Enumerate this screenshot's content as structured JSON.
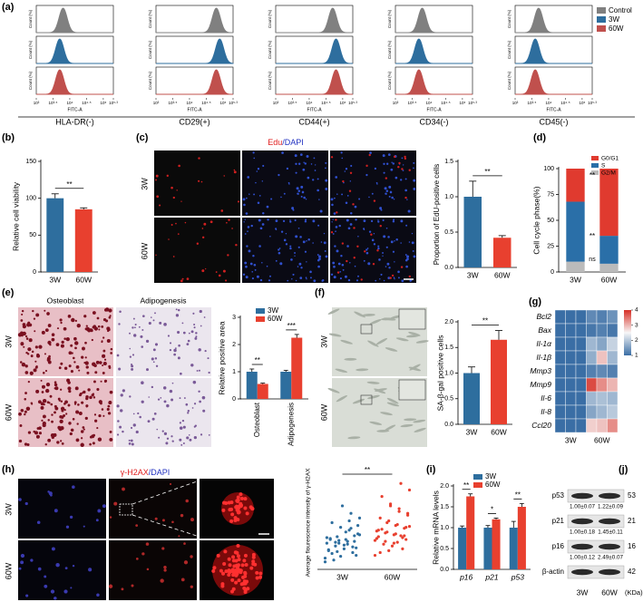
{
  "chart_data": [
    {
      "type": "flow-histogram",
      "label": "(a)",
      "ylabel": "Count (%)",
      "xlabel": "FITC-A",
      "categories": [
        "HLA-DR(-)",
        "CD29(+)",
        "CD44(+)",
        "CD34(-)",
        "CD45(-)"
      ],
      "series": [
        {
          "name": "Control",
          "color": "#808080",
          "values": [
            3.8,
            4.8,
            4.7,
            3.8,
            3.7
          ]
        },
        {
          "name": "3W",
          "color": "#2e6e9e",
          "values": [
            3.7,
            4.9,
            4.8,
            3.7,
            3.6
          ]
        },
        {
          "name": "60W",
          "color": "#c0504d",
          "values": [
            3.7,
            4.8,
            4.8,
            3.7,
            3.6
          ]
        }
      ],
      "xlim": [
        3,
        5.3
      ],
      "xticks": [
        {
          "value": 3,
          "label": "10³"
        },
        {
          "value": 3.5,
          "label": "10³·⁵"
        },
        {
          "value": 4,
          "label": "10⁴"
        },
        {
          "value": 4.5,
          "label": "10⁴·⁵"
        },
        {
          "value": 5,
          "label": "10⁵"
        },
        {
          "value": 5.3,
          "label": "10⁵·³"
        }
      ]
    },
    {
      "type": "bar",
      "label": "(b)",
      "ylabel": "Relative cell viability",
      "categories": [
        "3W",
        "60W"
      ],
      "values": [
        100,
        85
      ],
      "errors": [
        6,
        2
      ],
      "colors": [
        "#2e6e9e",
        "#e8402f"
      ],
      "ylim": [
        0,
        150
      ],
      "yticks": [
        0,
        50,
        100,
        150
      ],
      "annotations": [
        "**"
      ]
    },
    {
      "type": "bar",
      "label": "(c)",
      "ylabel": "Proportion of EdU-positive cells",
      "categories": [
        "3W",
        "60W"
      ],
      "values": [
        1.0,
        0.42
      ],
      "errors": [
        0.22,
        0.03
      ],
      "colors": [
        "#2e6e9e",
        "#e8402f"
      ],
      "ylim": [
        0,
        1.5
      ],
      "yticks": [
        {
          "value": 0,
          "label": "0.0"
        },
        {
          "value": 0.5,
          "label": "0.5"
        },
        {
          "value": 1,
          "label": "1.0"
        },
        {
          "value": 1.5,
          "label": "1.5"
        }
      ],
      "annotations": [
        "**"
      ],
      "image_title": [
        "Edu",
        "/DAPI"
      ],
      "image_rows": [
        "3W",
        "60W"
      ]
    },
    {
      "type": "stacked-bar",
      "label": "(d)",
      "ylabel": "Cell cycle phase(%)",
      "categories": [
        "3W",
        "60W"
      ],
      "series": [
        {
          "name": "G0/G1",
          "color": "#e03a2f",
          "values": [
            32,
            65
          ]
        },
        {
          "name": "S",
          "color": "#2a6fa8",
          "values": [
            58,
            27
          ]
        },
        {
          "name": "G2/M",
          "color": "#bbbbbb",
          "values": [
            10,
            8
          ]
        }
      ],
      "ylim": [
        0,
        100
      ],
      "yticks": [
        0,
        25,
        50,
        75,
        100
      ],
      "annotations": [
        "**",
        "**",
        "ns"
      ]
    },
    {
      "type": "grouped-bar",
      "label": "(e)",
      "ylabel": "Relative positive area",
      "categories": [
        "Osteoblast",
        "Adipogenesis"
      ],
      "series": [
        {
          "name": "3W",
          "color": "#2e6e9e",
          "values": [
            1.0,
            1.0
          ],
          "errors": [
            0.1,
            0.05
          ]
        },
        {
          "name": "60W",
          "color": "#e8402f",
          "values": [
            0.55,
            2.25
          ],
          "errors": [
            0.03,
            0.12
          ]
        }
      ],
      "ylim": [
        0,
        3
      ],
      "yticks": [
        0,
        1,
        2,
        3
      ],
      "annotations": [
        "**",
        "***"
      ],
      "image_columns": [
        "Osteoblast",
        "Adipogenesis"
      ],
      "image_rows": [
        "3W",
        "60W"
      ]
    },
    {
      "type": "bar",
      "label": "(f)",
      "ylabel": "SA-β-gal positive cells",
      "categories": [
        "3W",
        "60W"
      ],
      "values": [
        1.0,
        1.65
      ],
      "errors": [
        0.12,
        0.18
      ],
      "colors": [
        "#2e6e9e",
        "#e8402f"
      ],
      "ylim": [
        0,
        2
      ],
      "yticks": [
        {
          "value": 0,
          "label": "0.0"
        },
        {
          "value": 0.5,
          "label": "0.5"
        },
        {
          "value": 1,
          "label": "1.0"
        },
        {
          "value": 1.5,
          "label": "1.5"
        },
        {
          "value": 2,
          "label": "2.0"
        }
      ],
      "annotations": [
        "**"
      ],
      "image_rows": [
        "3W",
        "60W"
      ]
    },
    {
      "type": "heatmap",
      "label": "(g)",
      "rows": [
        "Bcl2",
        "Bax",
        "Il-1α",
        "Il-1β",
        "Mmp3",
        "Mmp9",
        "Il-6",
        "Il-8",
        "Ccl20"
      ],
      "categories": [
        "3W",
        "60W"
      ],
      "values": [
        [
          1,
          1,
          1,
          1.3,
          1.2,
          1.4
        ],
        [
          1,
          1,
          1,
          1.1,
          1.2,
          1.1
        ],
        [
          1,
          1,
          1,
          1.8,
          1.6,
          2.1
        ],
        [
          1,
          1,
          1,
          1.7,
          2.9,
          1.8
        ],
        [
          1,
          1,
          1,
          1.2,
          1.3,
          1.2
        ],
        [
          1,
          1,
          1,
          3.8,
          3.3,
          3.0
        ],
        [
          1,
          1,
          1,
          1.8,
          1.9,
          1.8
        ],
        [
          1,
          1,
          1,
          1.6,
          1.8,
          2.0
        ],
        [
          1,
          1,
          1,
          2.8,
          2.9,
          3.3
        ]
      ],
      "zlim": [
        1,
        4
      ],
      "zticks": [
        1,
        2,
        3,
        4
      ],
      "colors": [
        "#3a6ea5",
        "#f7f7f7",
        "#d73027"
      ]
    },
    {
      "type": "dot-plot",
      "label": "(h)",
      "ylabel": "Average flourescence intensity of γ-H2AX",
      "categories": [
        "3W",
        "60W"
      ],
      "colors": [
        "#2e6e9e",
        "#e8402f"
      ],
      "ylim": [
        0,
        1
      ],
      "annotations": [
        "**"
      ],
      "values": [
        [
          0.12,
          0.18,
          0.22,
          0.25,
          0.28,
          0.3,
          0.32,
          0.35,
          0.2,
          0.15,
          0.27,
          0.31,
          0.33,
          0.38,
          0.42,
          0.45,
          0.5,
          0.55,
          0.6,
          0.68,
          0.1,
          0.08,
          0.24,
          0.26,
          0.29,
          0.34,
          0.36,
          0.4,
          0.19,
          0.21,
          0.23,
          0.3,
          0.28,
          0.32,
          0.47,
          0.52,
          0.14,
          0.17,
          0.37,
          0.44
        ],
        [
          0.15,
          0.22,
          0.28,
          0.3,
          0.33,
          0.36,
          0.38,
          0.4,
          0.42,
          0.45,
          0.48,
          0.52,
          0.55,
          0.6,
          0.65,
          0.7,
          0.78,
          0.85,
          0.92,
          0.25,
          0.27,
          0.31,
          0.34,
          0.37,
          0.39,
          0.41,
          0.44,
          0.47,
          0.5,
          0.35,
          0.32,
          0.29,
          0.2,
          0.18,
          0.58,
          0.62,
          0.68,
          0.43,
          0.46,
          0.36
        ]
      ],
      "image_title": [
        "γ-H2AX",
        "/DAPI"
      ],
      "image_rows": [
        "3W",
        "60W"
      ]
    },
    {
      "type": "grouped-bar",
      "label": "(i)",
      "ylabel": "Relative mRNA levels",
      "categories": [
        "p16",
        "p21",
        "p53"
      ],
      "series": [
        {
          "name": "3W",
          "color": "#2e6e9e",
          "values": [
            1,
            1,
            1
          ],
          "errors": [
            0.04,
            0.05,
            0.15
          ]
        },
        {
          "name": "60W",
          "color": "#e8402f",
          "values": [
            1.75,
            1.2,
            1.5
          ],
          "errors": [
            0.06,
            0.03,
            0.08
          ]
        }
      ],
      "ylim": [
        0,
        2
      ],
      "yticks": [
        {
          "value": 0,
          "label": "0.0"
        },
        {
          "value": 0.5,
          "label": "0.5"
        },
        {
          "value": 1,
          "label": "1.0"
        },
        {
          "value": 1.5,
          "label": "1.5"
        },
        {
          "value": 2,
          "label": "2.0"
        }
      ],
      "annotations": [
        "**",
        "*",
        "**"
      ]
    }
  ],
  "blot": {
    "label": "(j)",
    "lanes": [
      "3W",
      "60W"
    ],
    "unit": "(KDa)",
    "bands": [
      {
        "name": "p53",
        "kda": 53,
        "quant": [
          "1.00±0.07",
          "1.22±0.09"
        ]
      },
      {
        "name": "p21",
        "kda": 21,
        "quant": [
          "1.00±0.18",
          "1.45±0.11"
        ]
      },
      {
        "name": "p16",
        "kda": 16,
        "quant": [
          "1.00±0.12",
          "2.49±0.07"
        ]
      },
      {
        "name": "β-actin",
        "kda": 42
      }
    ]
  }
}
